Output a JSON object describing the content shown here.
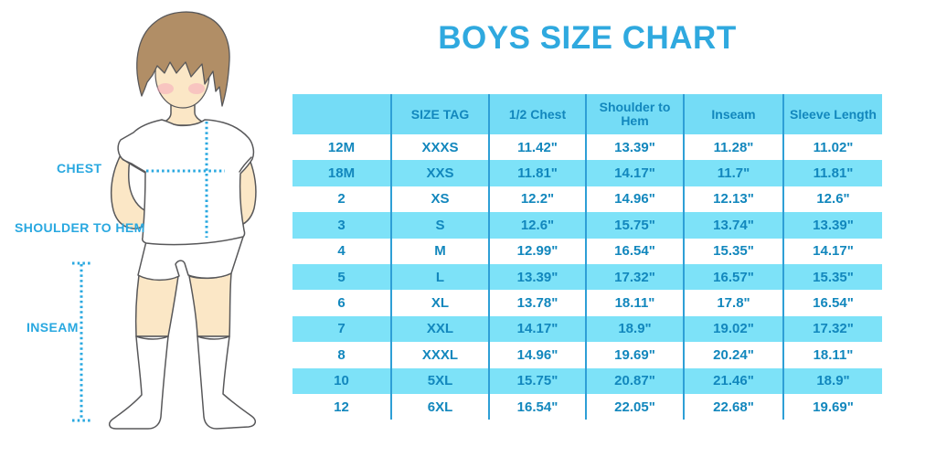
{
  "title": "BOYS SIZE CHART",
  "diagram": {
    "labels": {
      "chest": "CHEST",
      "shoulder_to_hem": "SHOULDER TO HEM",
      "inseam": "INSEAM"
    }
  },
  "colors": {
    "accent_blue": "#2FA9DF",
    "table_header_bg": "#74DCF6",
    "table_stripe_bg": "#7DE2F8",
    "table_border": "#2E9FD6",
    "table_text": "#1287BD",
    "skin": "#FBE7C6",
    "hair": "#B18E66",
    "blush": "#F6A9BC",
    "outline": "#58585A"
  },
  "chart_data": {
    "type": "table",
    "title": "BOYS SIZE CHART",
    "columns": [
      "",
      "SIZE TAG",
      "1/2 Chest",
      "Shoulder to Hem",
      "Inseam",
      "Sleeve Length"
    ],
    "rows": [
      [
        "12M",
        "XXXS",
        "11.42\"",
        "13.39\"",
        "11.28\"",
        "11.02\""
      ],
      [
        "18M",
        "XXS",
        "11.81\"",
        "14.17\"",
        "11.7\"",
        "11.81\""
      ],
      [
        "2",
        "XS",
        "12.2\"",
        "14.96\"",
        "12.13\"",
        "12.6\""
      ],
      [
        "3",
        "S",
        "12.6\"",
        "15.75\"",
        "13.74\"",
        "13.39\""
      ],
      [
        "4",
        "M",
        "12.99\"",
        "16.54\"",
        "15.35\"",
        "14.17\""
      ],
      [
        "5",
        "L",
        "13.39\"",
        "17.32\"",
        "16.57\"",
        "15.35\""
      ],
      [
        "6",
        "XL",
        "13.78\"",
        "18.11\"",
        "17.8\"",
        "16.54\""
      ],
      [
        "7",
        "XXL",
        "14.17\"",
        "18.9\"",
        "19.02\"",
        "17.32\""
      ],
      [
        "8",
        "XXXL",
        "14.96\"",
        "19.69\"",
        "20.24\"",
        "18.11\""
      ],
      [
        "10",
        "5XL",
        "15.75\"",
        "20.87\"",
        "21.46\"",
        "18.9\""
      ],
      [
        "12",
        "6XL",
        "16.54\"",
        "22.05\"",
        "22.68\"",
        "19.69\""
      ]
    ]
  }
}
